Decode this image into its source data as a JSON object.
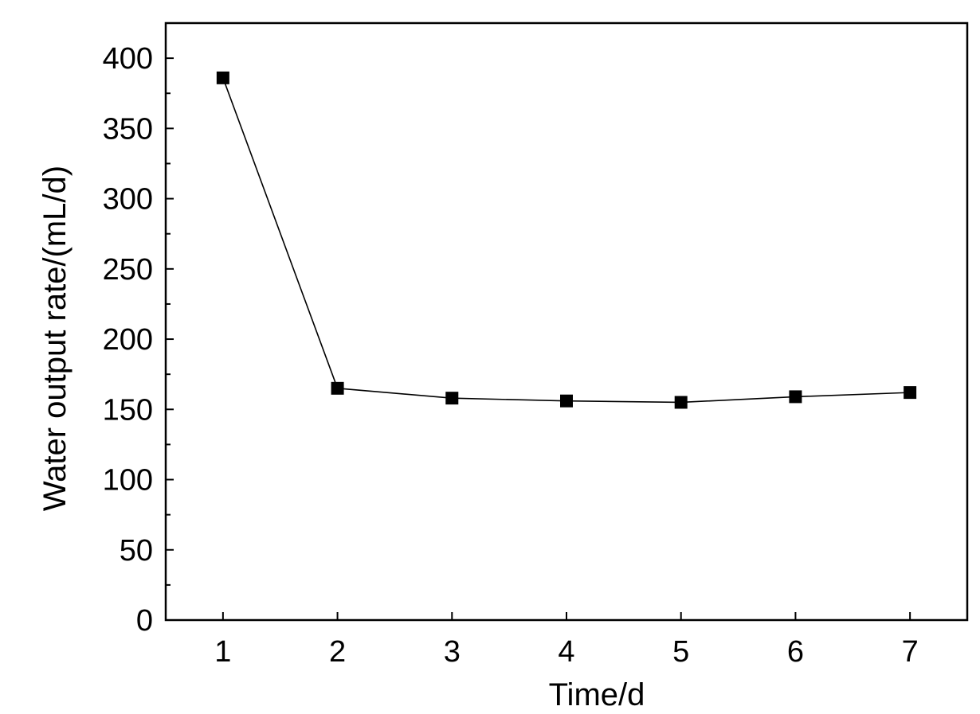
{
  "chart_data": {
    "type": "line",
    "title": "",
    "xlabel": "Time/d",
    "ylabel": "Water output rate/(mL/d)",
    "x": [
      1,
      2,
      3,
      4,
      5,
      6,
      7
    ],
    "series": [
      {
        "values": [
          386,
          165,
          158,
          156,
          155,
          159,
          162
        ],
        "marker": "square",
        "color": "#000000"
      }
    ],
    "xlim": [
      0.5,
      7.5
    ],
    "ylim": [
      0,
      425
    ],
    "xticks": [
      "1",
      "2",
      "3",
      "4",
      "5",
      "6",
      "7"
    ],
    "yticks": [
      "0",
      "50",
      "100",
      "150",
      "200",
      "250",
      "300",
      "350",
      "400"
    ],
    "grid": false,
    "legend": "none"
  }
}
